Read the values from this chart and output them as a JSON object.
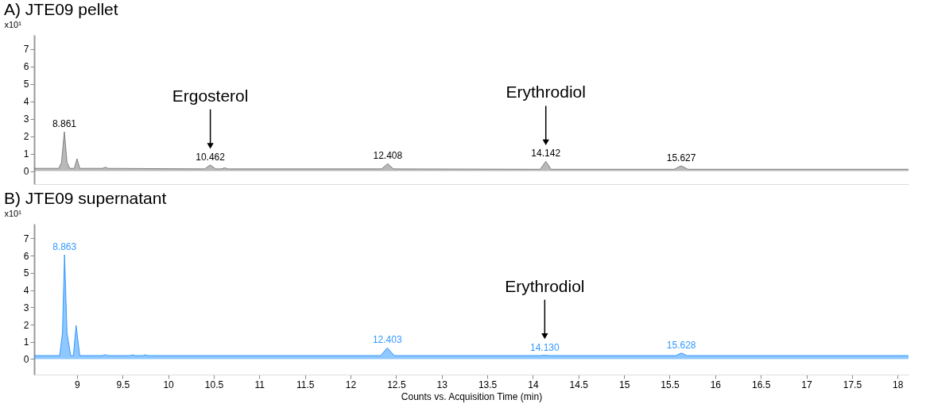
{
  "chart_data": [
    {
      "type": "area",
      "title": "A) JTE09 pellet",
      "ylabel": "x10¹",
      "tick_labels": "y",
      "grid": false,
      "legend": false,
      "xlim": [
        8.53,
        18.12
      ],
      "ylim": [
        -0.75,
        7.8
      ],
      "yticks": [
        0,
        1,
        2,
        3,
        4,
        5,
        6,
        7
      ],
      "series": [
        {
          "color": "#7f7f7f",
          "x": [
            8.53,
            8.8,
            8.83,
            8.861,
            8.89,
            8.92,
            8.97,
            9.0,
            9.03,
            9.28,
            9.31,
            9.34,
            10.4,
            10.462,
            10.52,
            10.58,
            10.62,
            10.66,
            12.34,
            12.408,
            12.47,
            14.08,
            14.142,
            14.2,
            15.55,
            15.627,
            15.7,
            18.12
          ],
          "values": [
            0.15,
            0.15,
            0.5,
            2.25,
            0.5,
            0.15,
            0.15,
            0.7,
            0.15,
            0.15,
            0.22,
            0.15,
            0.12,
            0.35,
            0.12,
            0.12,
            0.18,
            0.12,
            0.12,
            0.42,
            0.12,
            0.1,
            0.55,
            0.1,
            0.1,
            0.3,
            0.1,
            0.1
          ]
        }
      ],
      "annotations": [
        {
          "text": "8.861",
          "x": 8.861,
          "y": 2.25
        },
        {
          "text": "10.462",
          "x": 10.462,
          "y": 0.35
        },
        "Ergosterol",
        {
          "text": "12.408",
          "x": 12.408,
          "y": 0.42
        },
        {
          "text": "14.142",
          "x": 14.142,
          "y": 0.55
        },
        "Erythrodiol",
        {
          "text": "15.627",
          "x": 15.627,
          "y": 0.3
        }
      ]
    },
    {
      "type": "area",
      "title": "B) JTE09 supernatant",
      "ylabel": "x10¹",
      "xlabel": "Counts vs. Acquisition Time (min)",
      "grid": false,
      "legend": false,
      "xlim": [
        8.53,
        18.12
      ],
      "ylim": [
        -0.9,
        7.85
      ],
      "yticks": [
        0,
        1,
        2,
        3,
        4,
        5,
        6,
        7
      ],
      "xticks": [
        9,
        9.5,
        10,
        10.5,
        11,
        11.5,
        12,
        12.5,
        13,
        13.5,
        14,
        14.5,
        15,
        15.5,
        16,
        16.5,
        17,
        17.5,
        18
      ],
      "series": [
        {
          "color": "#3399ff",
          "x": [
            8.53,
            8.81,
            8.84,
            8.863,
            8.89,
            8.93,
            8.96,
            8.99,
            9.03,
            9.28,
            9.31,
            9.34,
            9.58,
            9.61,
            9.64,
            9.72,
            9.75,
            9.78,
            12.33,
            12.403,
            12.48,
            14.08,
            14.13,
            14.18,
            15.57,
            15.628,
            15.69,
            18.12
          ],
          "values": [
            0.2,
            0.2,
            1.5,
            6.05,
            1.5,
            0.2,
            0.2,
            1.95,
            0.2,
            0.2,
            0.25,
            0.2,
            0.2,
            0.24,
            0.2,
            0.2,
            0.24,
            0.2,
            0.2,
            0.65,
            0.2,
            0.2,
            0.22,
            0.2,
            0.2,
            0.35,
            0.2,
            0.2
          ]
        }
      ],
      "annotations": [
        {
          "text": "8.863",
          "x": 8.863,
          "y": 6.05
        },
        {
          "text": "12.403",
          "x": 12.403,
          "y": 0.65
        },
        {
          "text": "14.130",
          "x": 14.13,
          "y": 0.22
        },
        "Erythrodiol",
        {
          "text": "15.628",
          "x": 15.628,
          "y": 0.35
        }
      ]
    }
  ]
}
